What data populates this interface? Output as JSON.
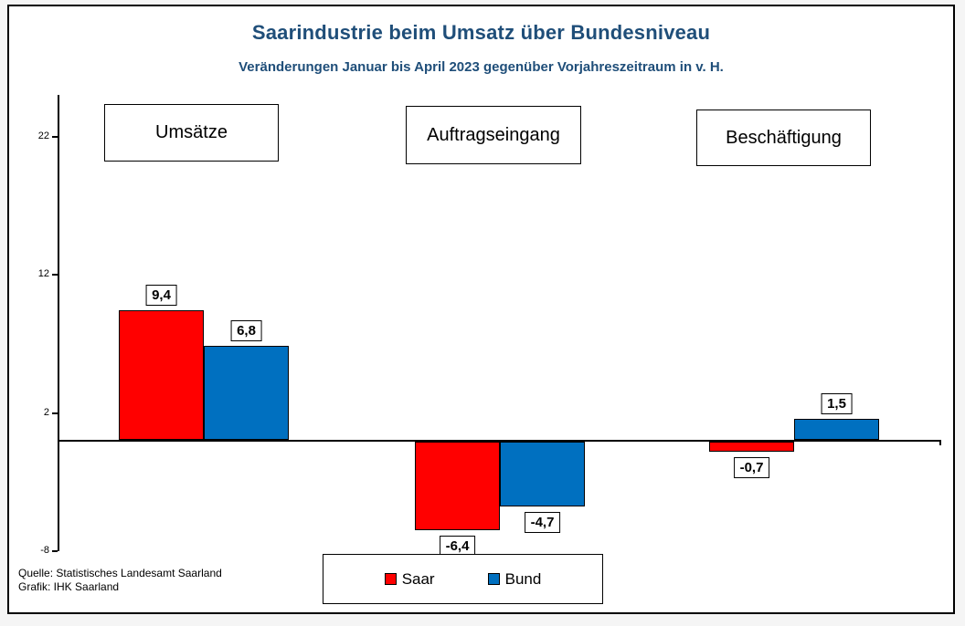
{
  "header": {
    "title": "Saarindustrie beim Umsatz über Bundesniveau",
    "subtitle": "Veränderungen Januar bis April 2023 gegenüber Vorjahreszeitraum in v. H.",
    "title_color": "#1F4E79"
  },
  "chart_data": {
    "type": "bar",
    "categories": [
      "Umsätze",
      "Auftragseingang",
      "Beschäftigung"
    ],
    "series": [
      {
        "name": "Saar",
        "color": "#FF0000",
        "values": [
          9.4,
          -6.4,
          -0.7
        ],
        "labels": [
          "9,4",
          "-6,4",
          "-0,7"
        ]
      },
      {
        "name": "Bund",
        "color": "#0070C0",
        "values": [
          6.8,
          -4.7,
          1.5
        ],
        "labels": [
          "6,8",
          "-4,7",
          "1,5"
        ]
      }
    ],
    "yticks": [
      22,
      12,
      2,
      -8
    ],
    "ylim": [
      -8,
      25
    ],
    "grid": false,
    "legend_position": "bottom-center",
    "unit": "v. H."
  },
  "footer": {
    "source": "Quelle: Statistisches Landesamt Saarland",
    "credit": "Grafik: IHK Saarland"
  }
}
